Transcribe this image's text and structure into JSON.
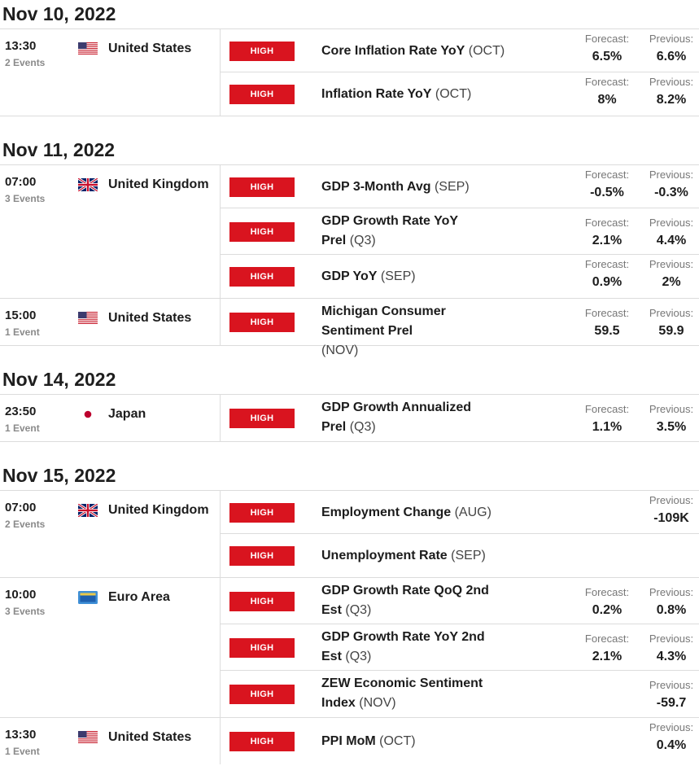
{
  "flag_icons": {
    "us": "united-states-flag-icon",
    "uk": "united-kingdom-flag-icon",
    "jp": "japan-flag-icon",
    "eu": "euro-area-flag-icon"
  },
  "colors": {
    "impact_high": "#d9141f",
    "separator": "#dcdcdc",
    "muted": "#8a8a8a"
  },
  "labels": {
    "forecast": "Forecast:",
    "previous": "Previous:",
    "impact": "HIGH"
  },
  "days": [
    {
      "date": "Nov 10, 2022",
      "groups": [
        {
          "time": "13:30",
          "count": "2 Events",
          "flag": "us",
          "country": "United States",
          "events": [
            {
              "name": "Core Inflation Rate YoY",
              "period": "(OCT)",
              "wrap": false,
              "impact": "HIGH",
              "forecast": "6.5%",
              "previous": "6.6%"
            },
            {
              "name": "Inflation Rate YoY",
              "period": "(OCT)",
              "wrap": false,
              "impact": "HIGH",
              "forecast": "8%",
              "previous": "8.2%"
            }
          ]
        }
      ]
    },
    {
      "date": "Nov 11, 2022",
      "groups": [
        {
          "time": "07:00",
          "count": "3 Events",
          "flag": "uk",
          "country": "United Kingdom",
          "events": [
            {
              "name": "GDP 3-Month Avg",
              "period": "(SEP)",
              "wrap": false,
              "impact": "HIGH",
              "forecast": "-0.5%",
              "previous": "-0.3%"
            },
            {
              "name": "GDP Growth Rate YoY Prel",
              "period": "(Q3)",
              "wrap": true,
              "impact": "HIGH",
              "forecast": "2.1%",
              "previous": "4.4%"
            },
            {
              "name": "GDP YoY",
              "period": "(SEP)",
              "wrap": false,
              "impact": "HIGH",
              "forecast": "0.9%",
              "previous": "2%"
            }
          ]
        },
        {
          "time": "15:00",
          "count": "1 Event",
          "flag": "us",
          "country": "United States",
          "events": [
            {
              "name": "Michigan Consumer Sentiment Prel",
              "period": "(NOV)",
              "wrap": true,
              "impact": "HIGH",
              "forecast": "59.5",
              "previous": "59.9"
            }
          ]
        }
      ]
    },
    {
      "date": "Nov 14, 2022",
      "groups": [
        {
          "time": "23:50",
          "count": "1 Event",
          "flag": "jp",
          "country": "Japan",
          "events": [
            {
              "name": "GDP Growth Annualized Prel",
              "period": "(Q3)",
              "wrap": true,
              "impact": "HIGH",
              "forecast": "1.1%",
              "previous": "3.5%"
            }
          ]
        }
      ]
    },
    {
      "date": "Nov 15, 2022",
      "groups": [
        {
          "time": "07:00",
          "count": "2 Events",
          "flag": "uk",
          "country": "United Kingdom",
          "events": [
            {
              "name": "Employment Change",
              "period": "(AUG)",
              "wrap": false,
              "impact": "HIGH",
              "forecast": "",
              "previous": "-109K"
            },
            {
              "name": "Unemployment Rate",
              "period": "(SEP)",
              "wrap": false,
              "impact": "HIGH",
              "forecast": "",
              "previous": ""
            }
          ]
        },
        {
          "time": "10:00",
          "count": "3 Events",
          "flag": "eu",
          "country": "Euro Area",
          "events": [
            {
              "name": "GDP Growth Rate QoQ 2nd Est",
              "period": "(Q3)",
              "wrap": true,
              "impact": "HIGH",
              "forecast": "0.2%",
              "previous": "0.8%"
            },
            {
              "name": "GDP Growth Rate YoY 2nd Est",
              "period": "(Q3)",
              "wrap": true,
              "impact": "HIGH",
              "forecast": "2.1%",
              "previous": "4.3%"
            },
            {
              "name": "ZEW Economic Sentiment Index",
              "period": "(NOV)",
              "wrap": true,
              "impact": "HIGH",
              "forecast": "",
              "previous": "-59.7"
            }
          ]
        },
        {
          "time": "13:30",
          "count": "1 Event",
          "flag": "us",
          "country": "United States",
          "events": [
            {
              "name": "PPI MoM",
              "period": "(OCT)",
              "wrap": false,
              "impact": "HIGH",
              "forecast": "",
              "previous": "0.4%"
            }
          ]
        }
      ]
    }
  ]
}
